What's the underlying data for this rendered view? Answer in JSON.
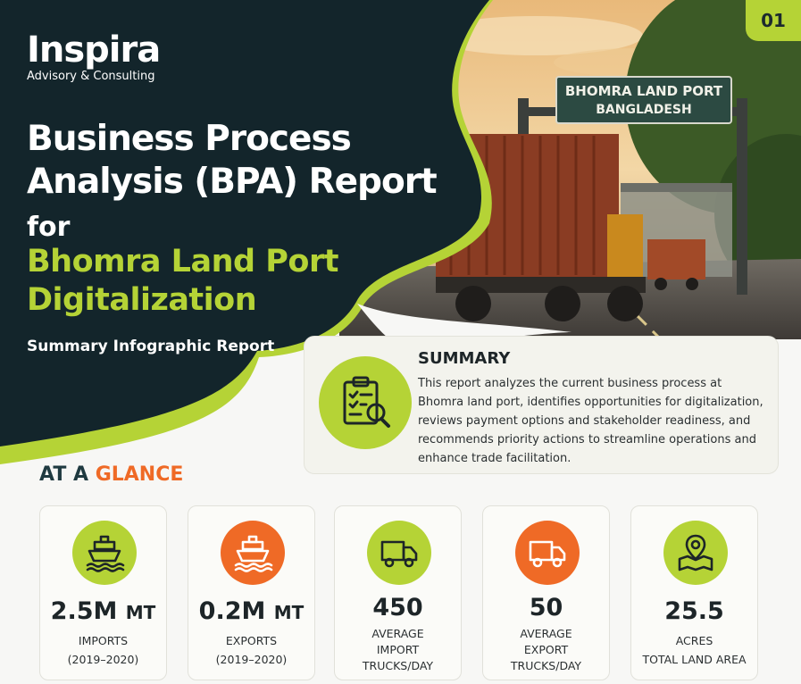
{
  "badge": {
    "number": "01"
  },
  "logo": {
    "brand": "Inspira",
    "tagline": "Advisory & Consulting"
  },
  "header": {
    "title_line1": "Business Process",
    "title_line2": "Analysis (BPA) Report",
    "title_for": "for",
    "title_highlight_line1": "Bhomra Land Port",
    "title_highlight_line2": "Digitalization",
    "subtitle": "Summary Infographic Report"
  },
  "photo": {
    "sign_line1": "BHOMRA LAND PORT",
    "sign_line2": "BANGLADESH"
  },
  "summary": {
    "heading": "SUMMARY",
    "body": "This report analyzes the current business process at Bhomra land port, identifies opportunities for digitalization, reviews payment options and stakeholder readiness, and recommends priority actions to streamline operations and enhance trade facilitation.",
    "icon": "clipboard-search-icon"
  },
  "glance": {
    "title_part1": "AT A",
    "title_part2": "GLANCE"
  },
  "cards": [
    {
      "icon": "ship-icon",
      "color": "green",
      "value": "2.5M",
      "unit": "MT",
      "label1": "IMPORTS",
      "label2": "(2019–2020)"
    },
    {
      "icon": "ship-icon",
      "color": "orange",
      "value": "0.2M",
      "unit": "MT",
      "label1": "EXPORTS",
      "label2": "(2019–2020)"
    },
    {
      "icon": "truck-icon",
      "color": "green",
      "value": "450",
      "label1": "AVERAGE",
      "label2": "IMPORT",
      "label3": "TRUCKS/DAY"
    },
    {
      "icon": "truck-icon",
      "color": "orange",
      "value": "50",
      "label1": "AVERAGE",
      "label2": "EXPORT",
      "label3": "TRUCKS/DAY"
    },
    {
      "icon": "map-pin-icon",
      "color": "green",
      "value": "25.5",
      "label1": "ACRES",
      "label2": "TOTAL LAND AREA"
    }
  ],
  "colors": {
    "dark": "#13252b",
    "lime": "#b5d336",
    "orange": "#ef6a26"
  }
}
